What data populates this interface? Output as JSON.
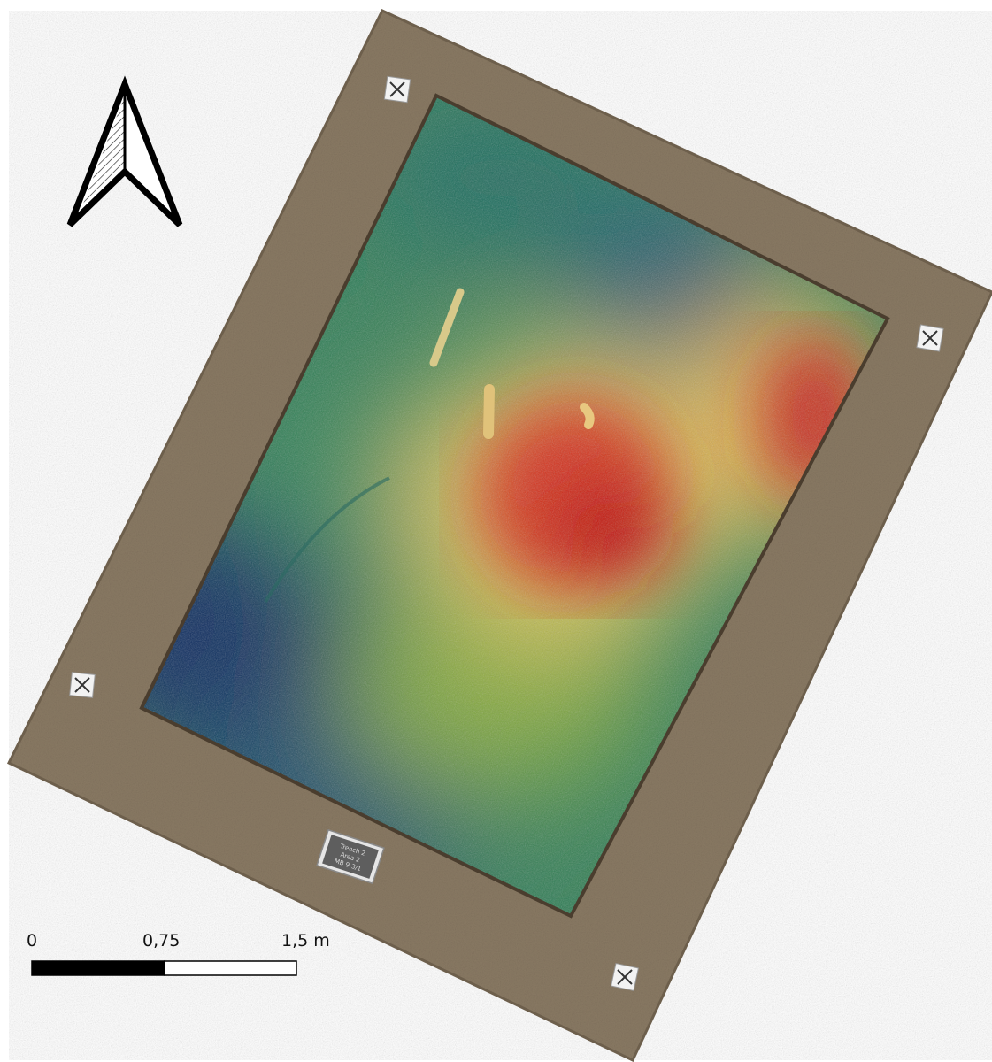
{
  "map": {
    "scale_bar": {
      "labels": [
        "0",
        "0,75",
        "1,5 m"
      ],
      "segments": 2,
      "colors": [
        "#000000",
        "#ffffff"
      ]
    },
    "north_arrow": {
      "direction": "north",
      "icon": "north-arrow-icon"
    },
    "site_label_plate": {
      "lines": [
        "Trench 2",
        "Area 2",
        "MB 9-3/1"
      ]
    },
    "ground_control_points": 4,
    "elevation_colors": {
      "low": "#0b2a5e",
      "mid_low": "#2a7f5a",
      "mid": "#7fa83a",
      "mid_high": "#d9c25a",
      "high": "#d6331a"
    },
    "soil_color": "#8a7a64"
  }
}
